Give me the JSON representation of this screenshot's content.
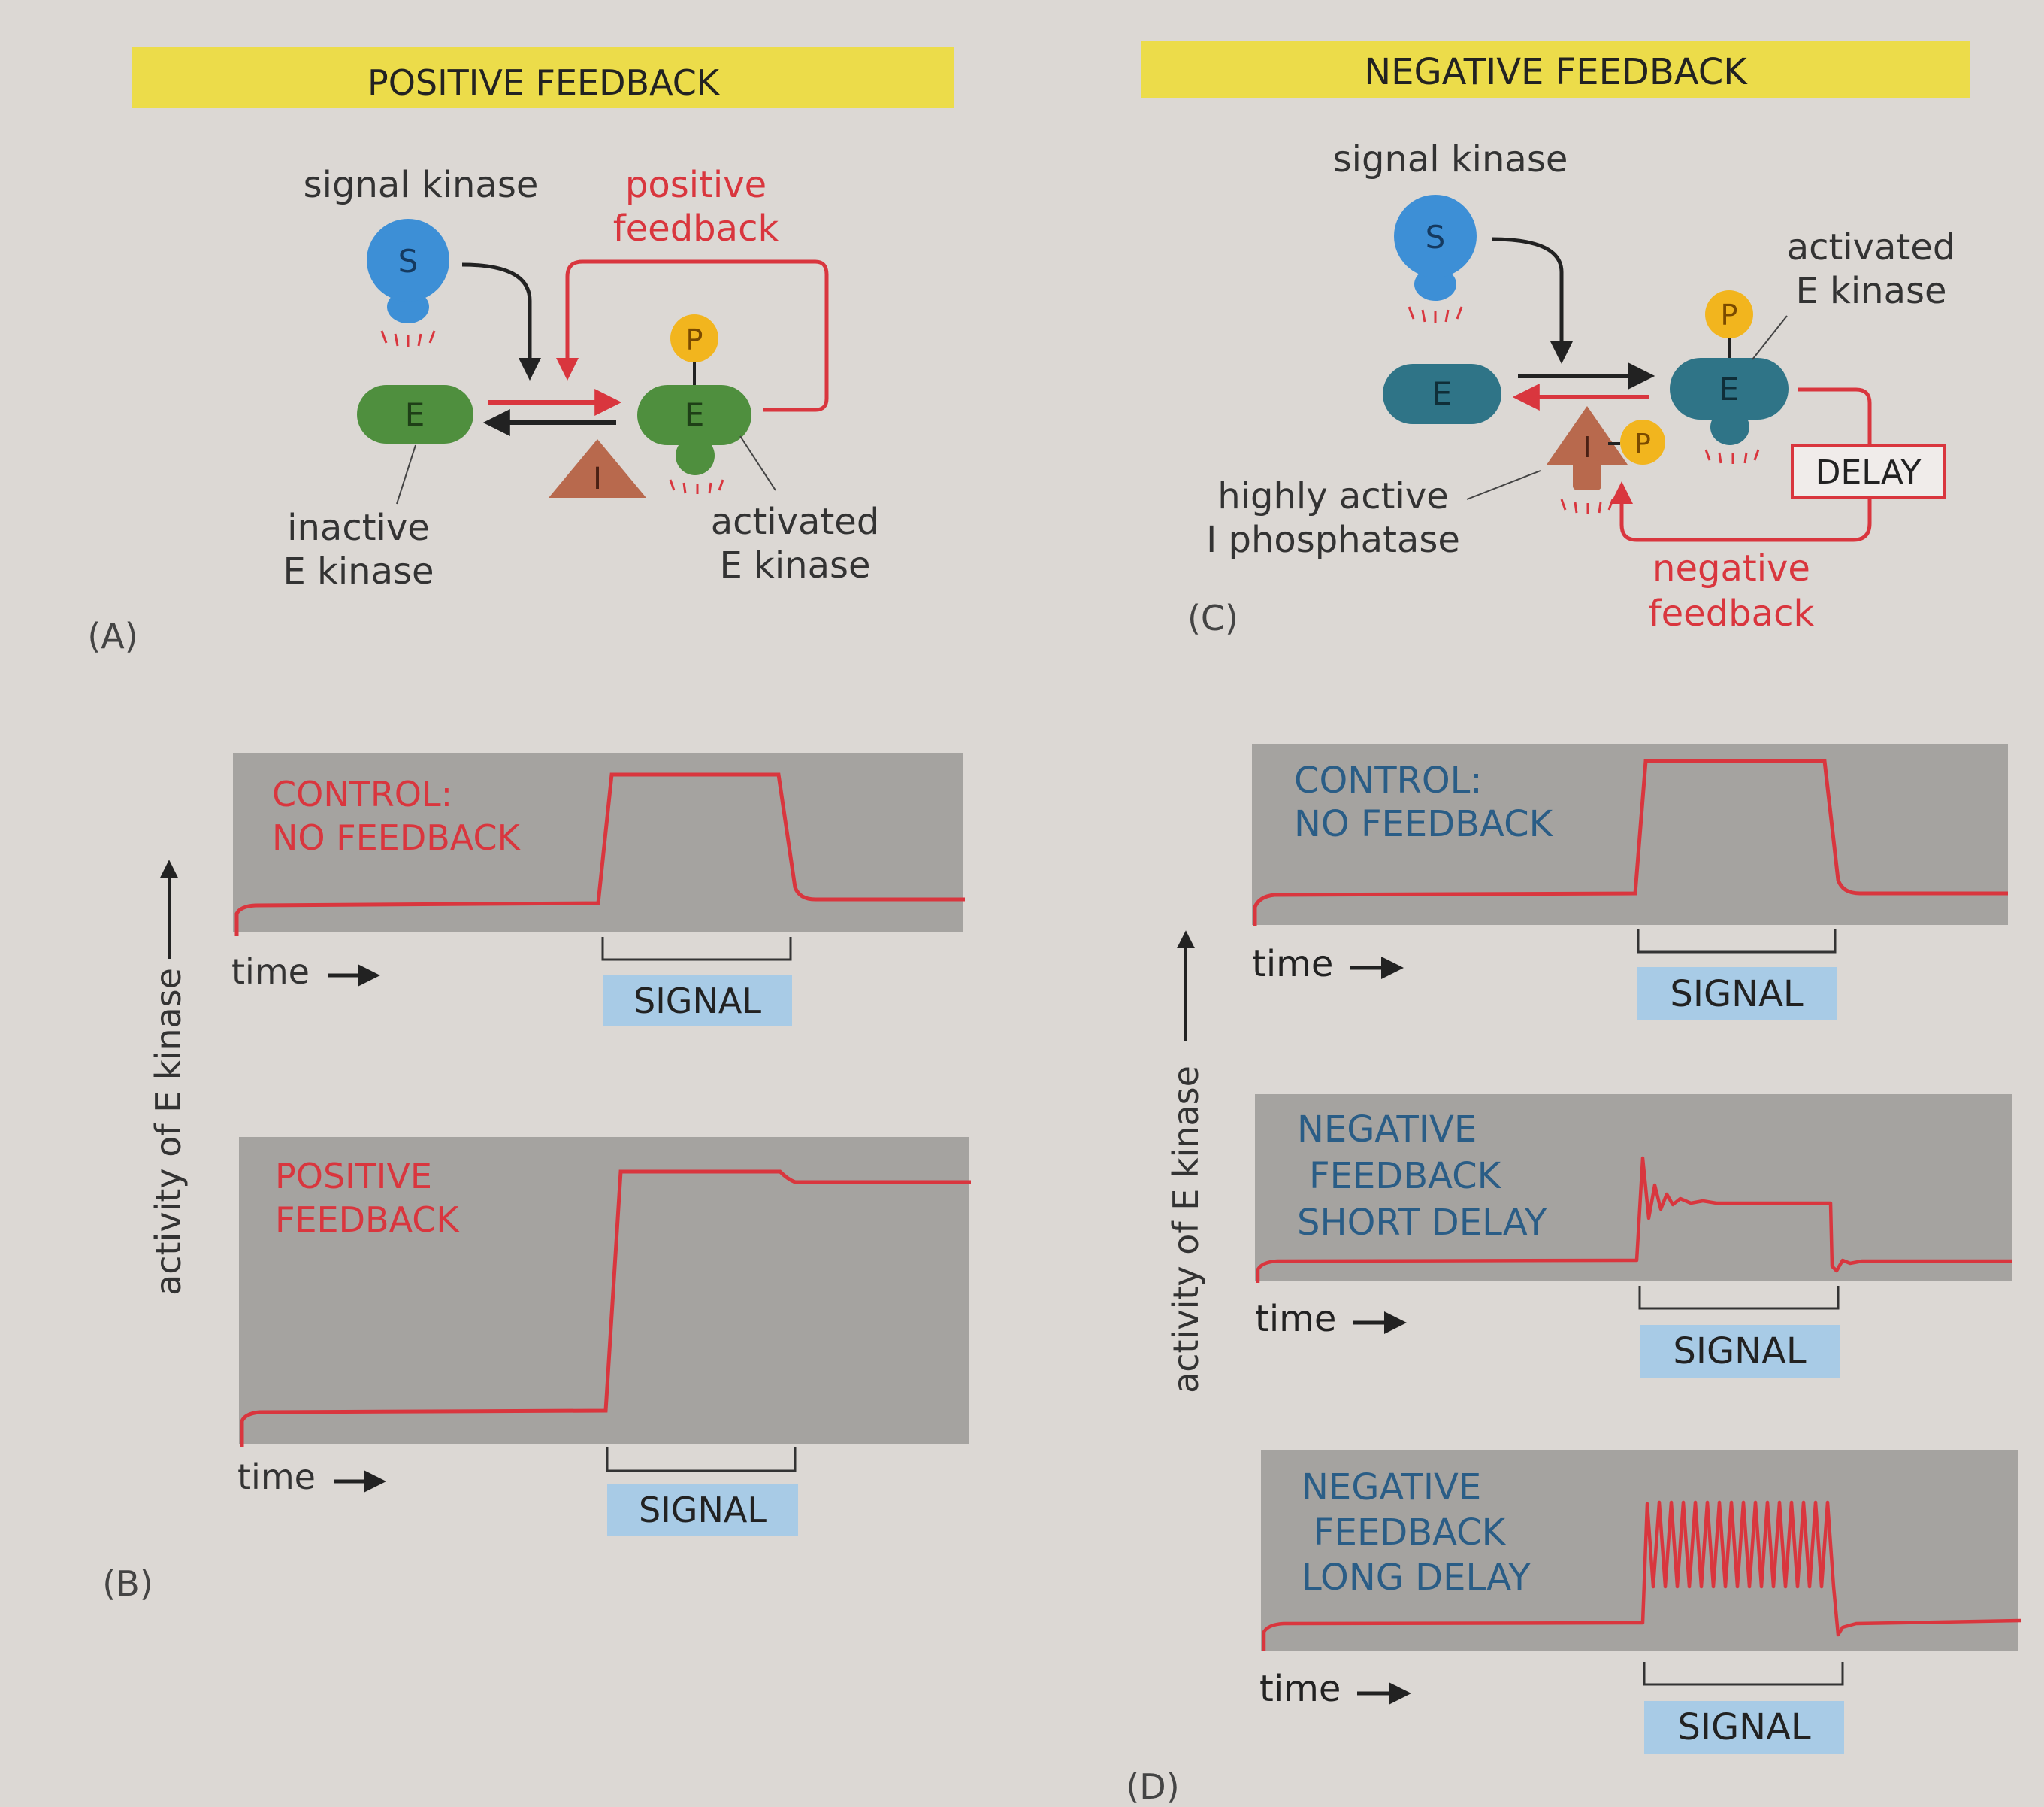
{
  "colors": {
    "red": "#d9363e",
    "yellow": "#ecdc4a",
    "blue_label": "#a8cbe6",
    "panel": "#a5a3a0",
    "bg": "#dcd8d4",
    "green": "#4f8f3e",
    "teal": "#2f7487",
    "blue_s": "#3d8fd6",
    "orange_p": "#f2b51e",
    "brown_i": "#b8694d"
  },
  "panelA": {
    "header": "POSITIVE FEEDBACK",
    "signal_kinase": "signal kinase",
    "s": "S",
    "e": "E",
    "p": "P",
    "i": "I",
    "positive_feedback_1": "positive",
    "positive_feedback_2": "feedback",
    "inactive_1": "inactive",
    "inactive_2": "E kinase",
    "activated_1": "activated",
    "activated_2": "E kinase",
    "label": "(A)"
  },
  "panelB": {
    "axis": "activity of E kinase",
    "label": "(B)",
    "graphs": [
      {
        "title_1": "CONTROL:",
        "title_2": "NO FEEDBACK",
        "time": "time",
        "signal": "SIGNAL"
      },
      {
        "title_1": "POSITIVE",
        "title_2": "FEEDBACK",
        "time": "time",
        "signal": "SIGNAL"
      }
    ]
  },
  "panelC": {
    "header": "NEGATIVE FEEDBACK",
    "signal_kinase": "signal kinase",
    "s": "S",
    "e": "E",
    "p": "P",
    "i": "I",
    "activated_1": "activated",
    "activated_2": "E kinase",
    "highly_1": "highly active",
    "highly_2": "I phosphatase",
    "delay": "DELAY",
    "negative_1": "negative",
    "negative_2": "feedback",
    "label": "(C)"
  },
  "panelD": {
    "axis": "activity of E kinase",
    "label": "(D)",
    "graphs": [
      {
        "title_1": "CONTROL:",
        "title_2": "NO FEEDBACK",
        "title_3": "",
        "time": "time",
        "signal": "SIGNAL"
      },
      {
        "title_1": "NEGATIVE",
        "title_2": "FEEDBACK",
        "title_3": "SHORT DELAY",
        "time": "time",
        "signal": "SIGNAL"
      },
      {
        "title_1": "NEGATIVE",
        "title_2": "FEEDBACK",
        "title_3": "LONG DELAY",
        "time": "time",
        "signal": "SIGNAL"
      }
    ]
  }
}
